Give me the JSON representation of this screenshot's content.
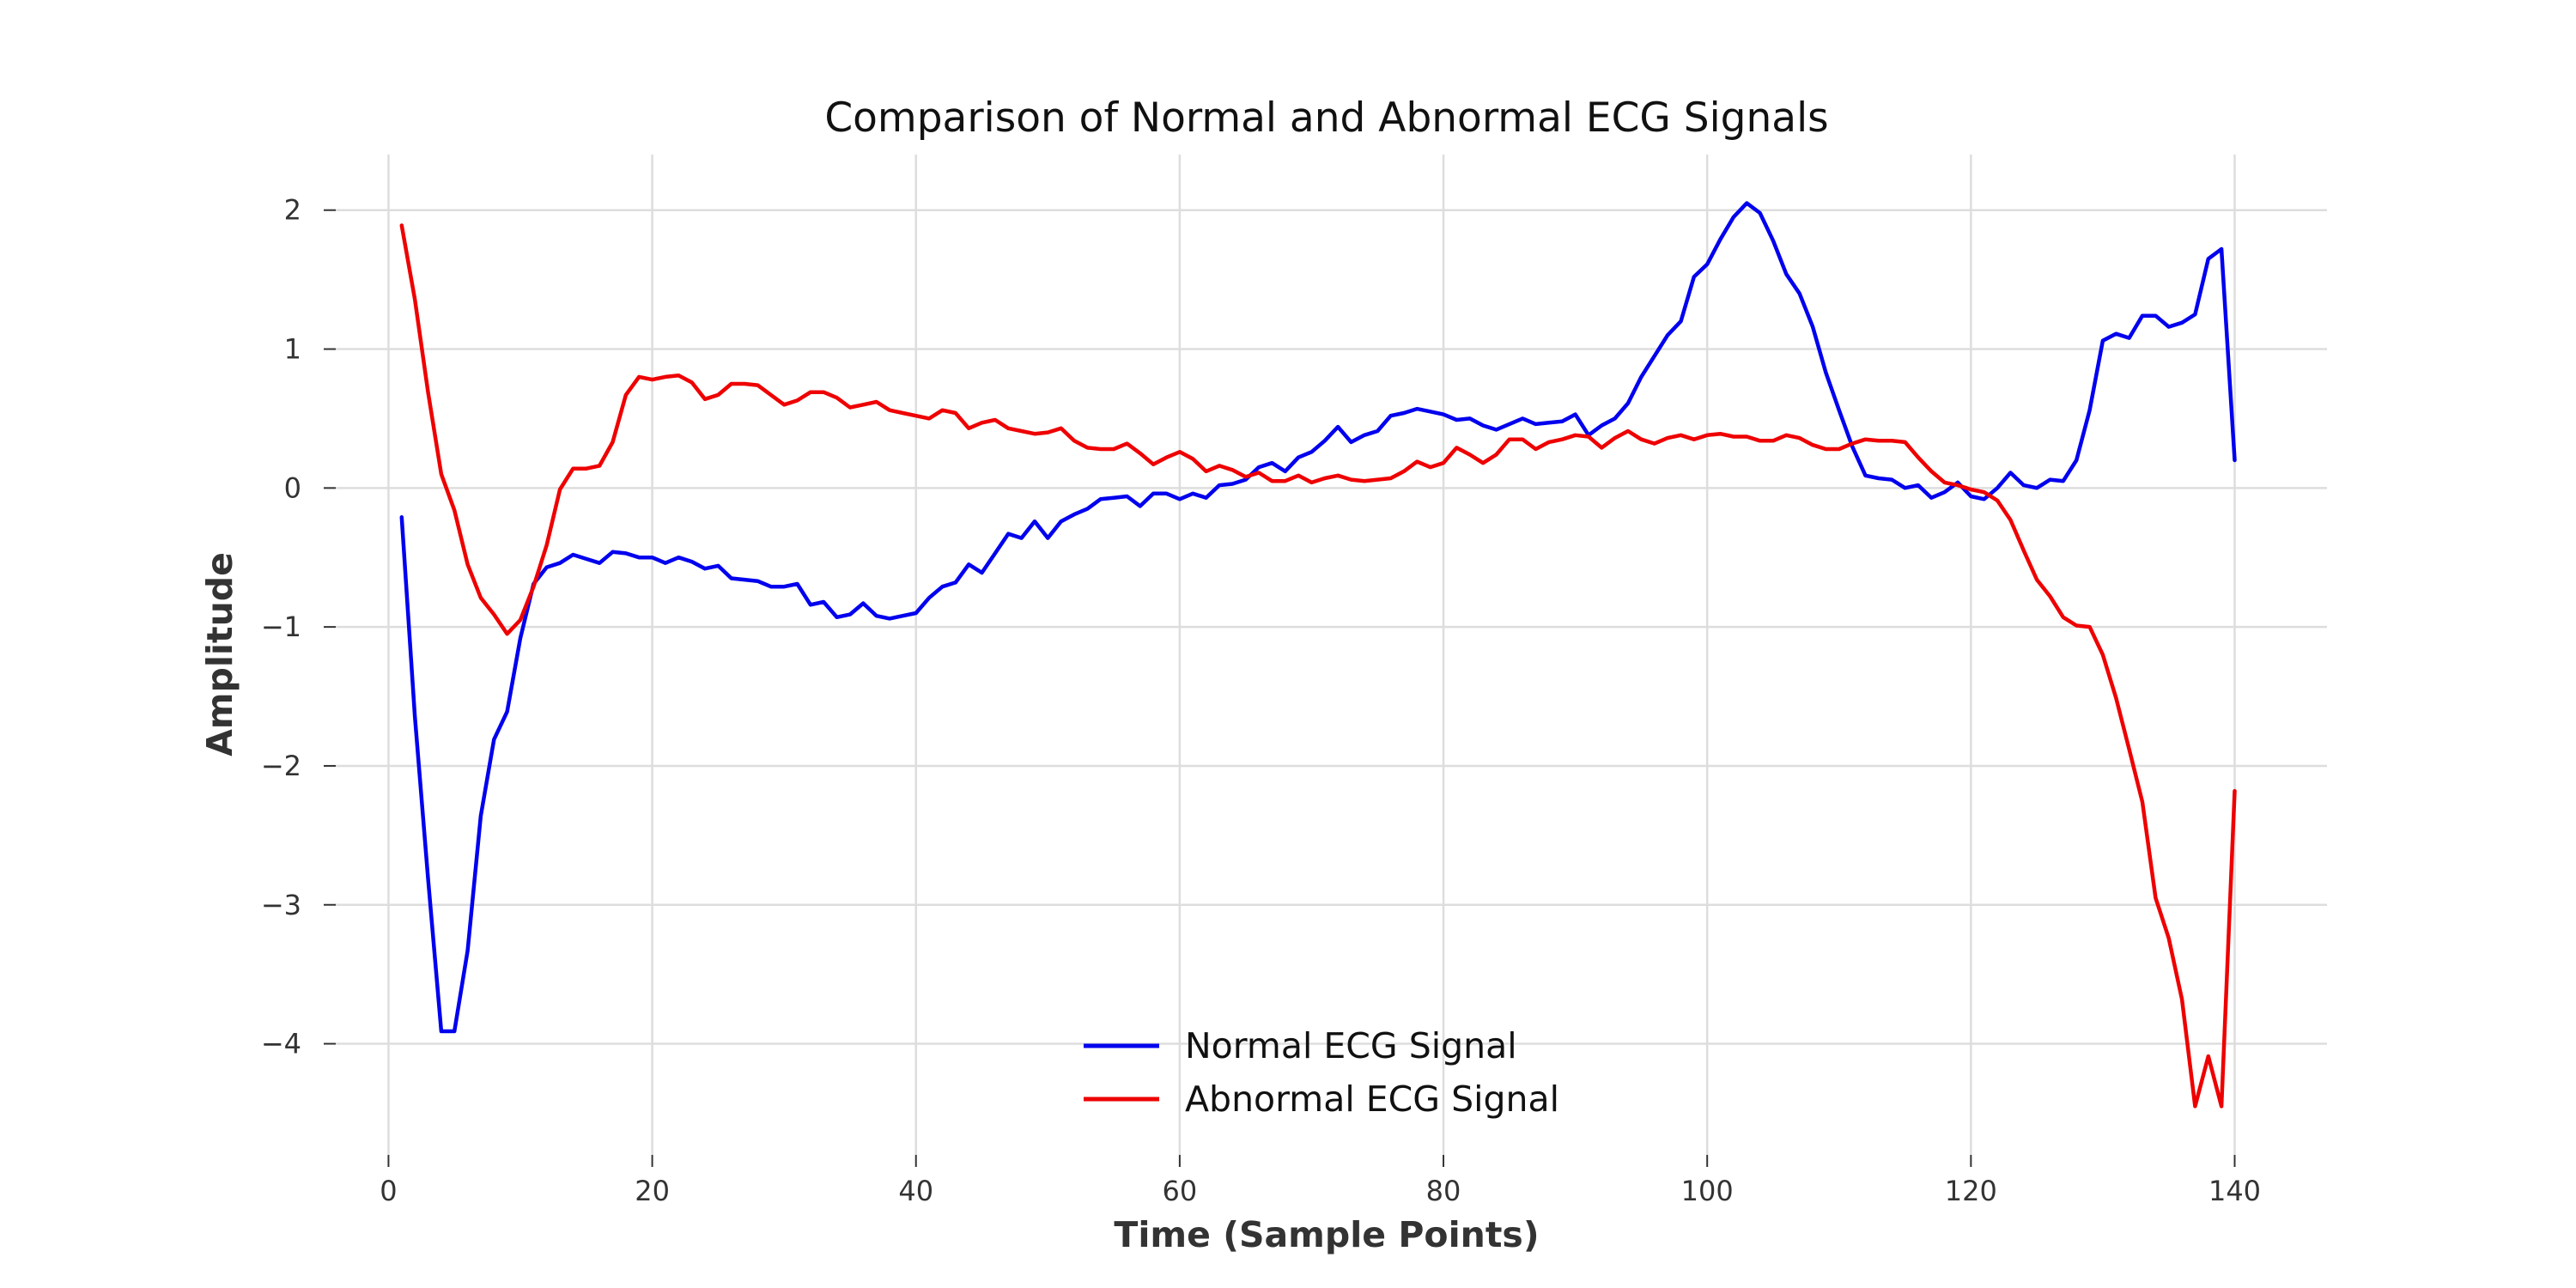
{
  "chart_data": {
    "type": "line",
    "title": "Comparison of Normal and Abnormal ECG Signals",
    "xlabel": "Time (Sample Points)",
    "ylabel": "Amplitude",
    "xlim": [
      -4,
      147
    ],
    "ylim": [
      -4.8,
      2.4
    ],
    "xticks": [
      0,
      20,
      40,
      60,
      80,
      100,
      120,
      140
    ],
    "yticks": [
      2,
      1,
      0,
      -1,
      -2,
      -3,
      -4
    ],
    "ytick_labels": [
      "2",
      "1",
      "0",
      "−1",
      "−2",
      "−3",
      "−4"
    ],
    "grid": true,
    "legend_position": "bottom-center",
    "x": [
      1,
      2,
      3,
      4,
      5,
      6,
      7,
      8,
      9,
      10,
      11,
      12,
      13,
      14,
      15,
      16,
      17,
      18,
      19,
      20,
      21,
      22,
      23,
      24,
      25,
      26,
      27,
      28,
      29,
      30,
      31,
      32,
      33,
      34,
      35,
      36,
      37,
      38,
      39,
      40,
      41,
      42,
      43,
      44,
      45,
      46,
      47,
      48,
      49,
      50,
      51,
      52,
      53,
      54,
      55,
      56,
      57,
      58,
      59,
      60,
      61,
      62,
      63,
      64,
      65,
      66,
      67,
      68,
      69,
      70,
      71,
      72,
      73,
      74,
      75,
      76,
      77,
      78,
      79,
      80,
      81,
      82,
      83,
      84,
      85,
      86,
      87,
      88,
      89,
      90,
      91,
      92,
      93,
      94,
      95,
      96,
      97,
      98,
      99,
      100,
      101,
      102,
      103,
      104,
      105,
      106,
      107,
      108,
      109,
      110,
      111,
      112,
      113,
      114,
      115,
      116,
      117,
      118,
      119,
      120,
      121,
      122,
      123,
      124,
      125,
      126,
      127,
      128,
      129,
      130,
      131,
      132,
      133,
      134,
      135,
      136,
      137,
      138,
      139,
      140
    ],
    "series": [
      {
        "name": "Normal ECG Signal",
        "color": "#0000ee",
        "values": [
          -0.21,
          -1.64,
          -2.81,
          -3.91,
          -3.91,
          -3.33,
          -2.36,
          -1.81,
          -1.61,
          -1.08,
          -0.69,
          -0.57,
          -0.54,
          -0.48,
          -0.51,
          -0.54,
          -0.46,
          -0.47,
          -0.5,
          -0.5,
          -0.54,
          -0.5,
          -0.53,
          -0.58,
          -0.56,
          -0.65,
          -0.66,
          -0.67,
          -0.71,
          -0.71,
          -0.69,
          -0.84,
          -0.82,
          -0.93,
          -0.91,
          -0.83,
          -0.92,
          -0.94,
          -0.92,
          -0.9,
          -0.79,
          -0.71,
          -0.68,
          -0.55,
          -0.61,
          -0.47,
          -0.33,
          -0.36,
          -0.24,
          -0.36,
          -0.24,
          -0.19,
          -0.15,
          -0.08,
          -0.07,
          -0.06,
          -0.13,
          -0.04,
          -0.04,
          -0.08,
          -0.04,
          -0.07,
          0.02,
          0.03,
          0.06,
          0.15,
          0.18,
          0.12,
          0.22,
          0.26,
          0.34,
          0.44,
          0.33,
          0.38,
          0.41,
          0.52,
          0.54,
          0.57,
          0.55,
          0.53,
          0.49,
          0.5,
          0.45,
          0.42,
          0.46,
          0.5,
          0.46,
          0.47,
          0.48,
          0.53,
          0.38,
          0.45,
          0.5,
          0.61,
          0.8,
          0.95,
          1.1,
          1.2,
          1.52,
          1.61,
          1.79,
          1.95,
          2.05,
          1.98,
          1.78,
          1.54,
          1.4,
          1.16,
          0.83,
          0.56,
          0.3,
          0.09,
          0.07,
          0.06,
          0.0,
          0.02,
          -0.07,
          -0.03,
          0.04,
          -0.06,
          -0.08,
          0.0,
          0.11,
          0.02,
          0.0,
          0.06,
          0.05,
          0.2,
          0.56,
          1.06,
          1.11,
          1.08,
          1.24,
          1.24,
          1.16,
          1.19,
          1.25,
          1.65,
          1.72,
          0.2
        ]
      },
      {
        "name": "Abnormal ECG Signal",
        "color": "#ee0000",
        "values": [
          1.89,
          1.36,
          0.69,
          0.1,
          -0.16,
          -0.55,
          -0.79,
          -0.91,
          -1.05,
          -0.95,
          -0.71,
          -0.41,
          -0.01,
          0.14,
          0.14,
          0.16,
          0.33,
          0.67,
          0.8,
          0.78,
          0.8,
          0.81,
          0.76,
          0.64,
          0.67,
          0.75,
          0.75,
          0.74,
          0.67,
          0.6,
          0.63,
          0.69,
          0.69,
          0.65,
          0.58,
          0.6,
          0.62,
          0.56,
          0.54,
          0.52,
          0.5,
          0.56,
          0.54,
          0.43,
          0.47,
          0.49,
          0.43,
          0.41,
          0.39,
          0.4,
          0.43,
          0.34,
          0.29,
          0.28,
          0.28,
          0.32,
          0.25,
          0.17,
          0.22,
          0.26,
          0.21,
          0.12,
          0.16,
          0.13,
          0.08,
          0.11,
          0.05,
          0.05,
          0.09,
          0.04,
          0.07,
          0.09,
          0.06,
          0.05,
          0.06,
          0.07,
          0.12,
          0.19,
          0.15,
          0.18,
          0.29,
          0.24,
          0.18,
          0.24,
          0.35,
          0.35,
          0.28,
          0.33,
          0.35,
          0.38,
          0.37,
          0.29,
          0.36,
          0.41,
          0.35,
          0.32,
          0.36,
          0.38,
          0.35,
          0.38,
          0.39,
          0.37,
          0.37,
          0.34,
          0.34,
          0.38,
          0.36,
          0.31,
          0.28,
          0.28,
          0.32,
          0.35,
          0.34,
          0.34,
          0.33,
          0.22,
          0.12,
          0.04,
          0.02,
          -0.01,
          -0.03,
          -0.09,
          -0.23,
          -0.45,
          -0.66,
          -0.78,
          -0.93,
          -0.99,
          -1.0,
          -1.2,
          -1.51,
          -1.88,
          -2.26,
          -2.95,
          -3.24,
          -3.68,
          -4.45,
          -4.09,
          -4.45,
          -2.18
        ]
      }
    ]
  }
}
